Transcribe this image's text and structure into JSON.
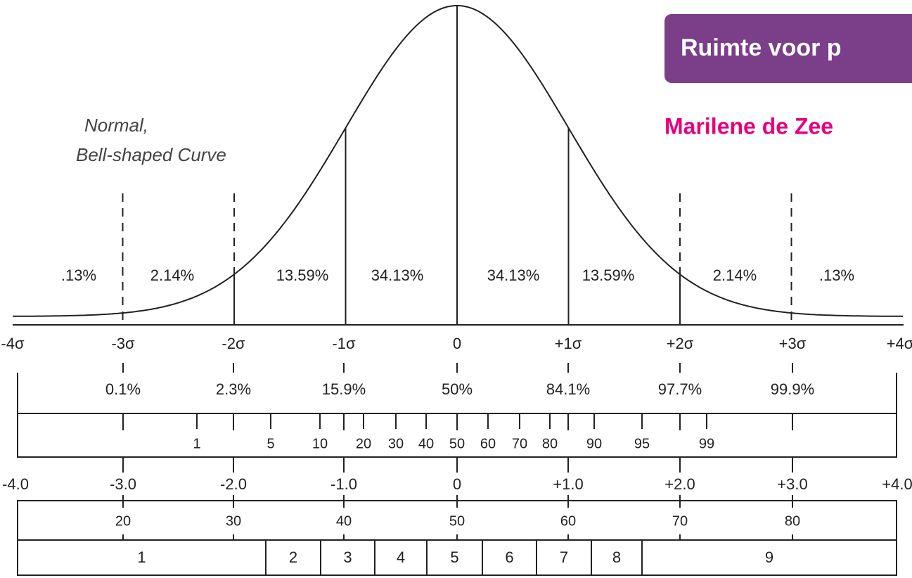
{
  "annotation": [
    "Normal,",
    "Bell-shaped Curve"
  ],
  "banner": {
    "title": "Ruimte voor p",
    "author": "Marilene de Zee"
  },
  "regions": [
    ".13%",
    "2.14%",
    "13.59%",
    "34.13%",
    "34.13%",
    "13.59%",
    "2.14%",
    ".13%"
  ],
  "sigma_labels": [
    "-4σ",
    "-3σ",
    "-2σ",
    "-1σ",
    "0",
    "+1σ",
    "+2σ",
    "+3σ",
    "+4σ"
  ],
  "cumulative": [
    "0.1%",
    "2.3%",
    "15.9%",
    "50%",
    "84.1%",
    "97.7%",
    "99.9%"
  ],
  "percentiles": [
    "1",
    "5",
    "10",
    "20",
    "30",
    "40",
    "50",
    "60",
    "70",
    "80",
    "90",
    "95",
    "99"
  ],
  "z_scores": [
    "-4.0",
    "-3.0",
    "-2.0",
    "-1.0",
    "0",
    "+1.0",
    "+2.0",
    "+3.0",
    "+4.0"
  ],
  "t_scores": [
    "20",
    "30",
    "40",
    "50",
    "60",
    "70",
    "80"
  ],
  "stanines": [
    "1",
    "2",
    "3",
    "4",
    "5",
    "6",
    "7",
    "8",
    "9"
  ]
}
